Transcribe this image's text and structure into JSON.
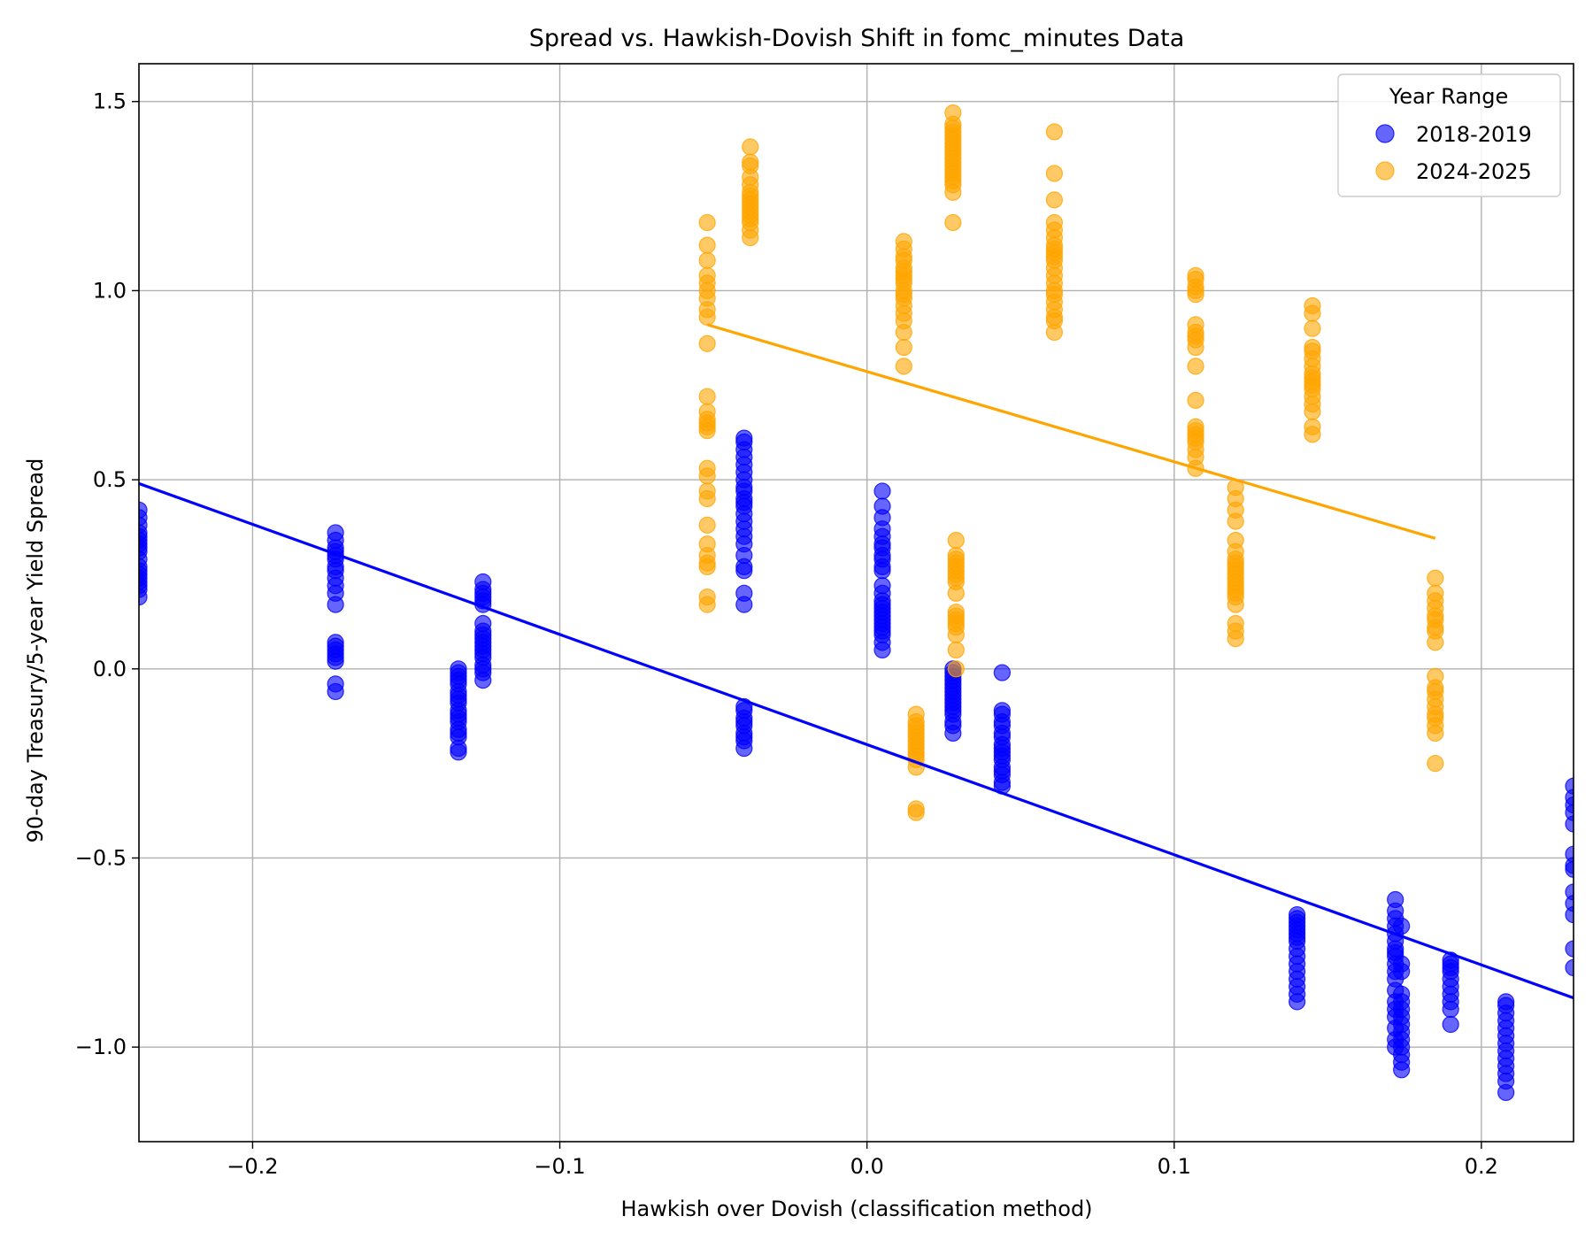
{
  "chart_data": {
    "type": "scatter",
    "title": "Spread vs. Hawkish-Dovish Shift in fomc_minutes Data",
    "xlabel": "Hawkish over Dovish (classification method)",
    "ylabel": "90-day Treasury/5-year Yield Spread",
    "xlim": [
      -0.237,
      0.23
    ],
    "ylim": [
      -1.25,
      1.6
    ],
    "xticks": [
      -0.2,
      -0.1,
      0.0,
      0.1,
      0.2
    ],
    "xtick_labels": [
      "−0.2",
      "−0.1",
      "0.0",
      "0.1",
      "0.2"
    ],
    "yticks": [
      -1.0,
      -0.5,
      0.0,
      0.5,
      1.0,
      1.5
    ],
    "ytick_labels": [
      "−1.0",
      "−0.5",
      "0.0",
      "0.5",
      "1.0",
      "1.5"
    ],
    "grid": true,
    "legend": {
      "title": "Year Range",
      "placement": "top-right"
    },
    "series": [
      {
        "name": "2018-2019",
        "color": "#0000ff",
        "clusters": [
          {
            "x": -0.237,
            "y": [
              0.19,
              0.21,
              0.22,
              0.23,
              0.24,
              0.25,
              0.26,
              0.27,
              0.29,
              0.31,
              0.32,
              0.33,
              0.34,
              0.35,
              0.36,
              0.38,
              0.4,
              0.42
            ]
          },
          {
            "x": -0.173,
            "y": [
              -0.06,
              -0.04,
              0.02,
              0.03,
              0.04,
              0.05,
              0.06,
              0.07,
              0.17,
              0.2,
              0.22,
              0.24,
              0.26,
              0.27,
              0.29,
              0.3,
              0.31,
              0.32,
              0.34,
              0.36
            ]
          },
          {
            "x": -0.133,
            "y": [
              -0.22,
              -0.21,
              -0.18,
              -0.17,
              -0.16,
              -0.14,
              -0.13,
              -0.12,
              -0.11,
              -0.09,
              -0.08,
              -0.07,
              -0.06,
              -0.04,
              -0.03,
              -0.02,
              -0.01,
              0.0
            ]
          },
          {
            "x": -0.125,
            "y": [
              -0.03,
              -0.01,
              0.0,
              0.01,
              0.03,
              0.04,
              0.05,
              0.06,
              0.07,
              0.08,
              0.09,
              0.1,
              0.12,
              0.17,
              0.18,
              0.19,
              0.2,
              0.21,
              0.23
            ]
          },
          {
            "x": -0.04,
            "y": [
              -0.21,
              -0.19,
              -0.18,
              -0.17,
              -0.15,
              -0.14,
              -0.13,
              -0.11,
              -0.1,
              0.17,
              0.2,
              0.26,
              0.27,
              0.3,
              0.33,
              0.35,
              0.37,
              0.39,
              0.41,
              0.43,
              0.44,
              0.45,
              0.47,
              0.48,
              0.5,
              0.52,
              0.54,
              0.56,
              0.58,
              0.6,
              0.61
            ]
          },
          {
            "x": 0.005,
            "y": [
              0.05,
              0.07,
              0.09,
              0.1,
              0.11,
              0.12,
              0.13,
              0.14,
              0.15,
              0.16,
              0.17,
              0.18,
              0.2,
              0.22,
              0.26,
              0.27,
              0.29,
              0.3,
              0.32,
              0.33,
              0.35,
              0.37,
              0.4,
              0.43,
              0.47
            ]
          },
          {
            "x": 0.028,
            "y": [
              -0.17,
              -0.15,
              -0.14,
              -0.12,
              -0.11,
              -0.1,
              -0.09,
              -0.08,
              -0.07,
              -0.06,
              -0.05,
              -0.04,
              -0.03,
              -0.02,
              -0.01,
              0.0
            ]
          },
          {
            "x": 0.044,
            "y": [
              -0.31,
              -0.3,
              -0.28,
              -0.27,
              -0.26,
              -0.24,
              -0.23,
              -0.22,
              -0.21,
              -0.2,
              -0.18,
              -0.17,
              -0.15,
              -0.14,
              -0.12,
              -0.11,
              -0.01
            ]
          },
          {
            "x": 0.14,
            "y": [
              -0.88,
              -0.86,
              -0.84,
              -0.82,
              -0.8,
              -0.78,
              -0.76,
              -0.74,
              -0.72,
              -0.71,
              -0.7,
              -0.69,
              -0.68,
              -0.67,
              -0.66,
              -0.65
            ]
          },
          {
            "x": 0.172,
            "y": [
              -1.0,
              -0.98,
              -0.95,
              -0.92,
              -0.9,
              -0.88,
              -0.85,
              -0.82,
              -0.8,
              -0.78,
              -0.76,
              -0.75,
              -0.74,
              -0.72,
              -0.7,
              -0.68,
              -0.66,
              -0.64,
              -0.61
            ]
          },
          {
            "x": 0.174,
            "y": [
              -1.06,
              -1.04,
              -1.02,
              -1.0,
              -0.98,
              -0.96,
              -0.94,
              -0.92,
              -0.9,
              -0.88,
              -0.86,
              -0.8,
              -0.78,
              -0.68
            ]
          },
          {
            "x": 0.19,
            "y": [
              -0.94,
              -0.9,
              -0.88,
              -0.86,
              -0.84,
              -0.82,
              -0.8,
              -0.79,
              -0.78,
              -0.77
            ]
          },
          {
            "x": 0.208,
            "y": [
              -1.12,
              -1.09,
              -1.07,
              -1.05,
              -1.03,
              -1.01,
              -0.99,
              -0.97,
              -0.95,
              -0.93,
              -0.91,
              -0.89,
              -0.88
            ]
          },
          {
            "x": 0.23,
            "y": [
              -0.79,
              -0.74,
              -0.65,
              -0.62,
              -0.59,
              -0.53,
              -0.52,
              -0.49,
              -0.41,
              -0.38,
              -0.36,
              -0.34,
              -0.31
            ]
          }
        ],
        "fit": {
          "x": [
            -0.237,
            0.23
          ],
          "y": [
            0.49,
            -0.87
          ]
        }
      },
      {
        "name": "2024-2025",
        "color": "#ffa500",
        "clusters": [
          {
            "x": -0.052,
            "y": [
              0.17,
              0.19,
              0.27,
              0.28,
              0.3,
              0.33,
              0.38,
              0.45,
              0.47,
              0.51,
              0.53,
              0.63,
              0.64,
              0.65,
              0.66,
              0.68,
              0.72,
              0.86,
              0.93,
              0.95,
              0.98,
              1.0,
              1.02,
              1.04,
              1.08,
              1.12,
              1.18
            ]
          },
          {
            "x": -0.038,
            "y": [
              1.14,
              1.16,
              1.18,
              1.19,
              1.2,
              1.21,
              1.22,
              1.23,
              1.24,
              1.25,
              1.26,
              1.28,
              1.3,
              1.33,
              1.34,
              1.38
            ]
          },
          {
            "x": 0.012,
            "y": [
              0.8,
              0.85,
              0.89,
              0.92,
              0.94,
              0.96,
              0.98,
              0.99,
              1.0,
              1.02,
              1.03,
              1.04,
              1.05,
              1.06,
              1.08,
              1.09,
              1.11,
              1.13
            ]
          },
          {
            "x": 0.016,
            "y": [
              -0.38,
              -0.37,
              -0.26,
              -0.24,
              -0.23,
              -0.22,
              -0.21,
              -0.2,
              -0.19,
              -0.18,
              -0.17,
              -0.16,
              -0.15,
              -0.14,
              -0.12
            ]
          },
          {
            "x": 0.028,
            "y": [
              1.18,
              1.26,
              1.28,
              1.29,
              1.3,
              1.31,
              1.32,
              1.33,
              1.34,
              1.35,
              1.36,
              1.37,
              1.38,
              1.39,
              1.4,
              1.41,
              1.42,
              1.43,
              1.44,
              1.47
            ]
          },
          {
            "x": 0.029,
            "y": [
              0.0,
              0.05,
              0.09,
              0.11,
              0.12,
              0.13,
              0.14,
              0.15,
              0.2,
              0.23,
              0.24,
              0.25,
              0.26,
              0.27,
              0.28,
              0.29,
              0.3,
              0.34
            ]
          },
          {
            "x": 0.061,
            "y": [
              0.89,
              0.92,
              0.93,
              0.95,
              0.97,
              0.99,
              1.0,
              1.02,
              1.04,
              1.06,
              1.08,
              1.09,
              1.1,
              1.11,
              1.12,
              1.14,
              1.16,
              1.18,
              1.24,
              1.31,
              1.42
            ]
          },
          {
            "x": 0.107,
            "y": [
              0.53,
              0.56,
              0.58,
              0.6,
              0.61,
              0.62,
              0.63,
              0.64,
              0.71,
              0.8,
              0.85,
              0.87,
              0.88,
              0.89,
              0.91,
              0.99,
              1.0,
              1.01,
              1.03,
              1.04
            ]
          },
          {
            "x": 0.12,
            "y": [
              0.08,
              0.1,
              0.12,
              0.17,
              0.19,
              0.2,
              0.21,
              0.22,
              0.23,
              0.24,
              0.25,
              0.26,
              0.27,
              0.28,
              0.29,
              0.31,
              0.34,
              0.39,
              0.42,
              0.45,
              0.48
            ]
          },
          {
            "x": 0.145,
            "y": [
              0.62,
              0.64,
              0.68,
              0.7,
              0.72,
              0.74,
              0.75,
              0.76,
              0.77,
              0.78,
              0.8,
              0.82,
              0.84,
              0.85,
              0.9,
              0.94,
              0.96
            ]
          },
          {
            "x": 0.185,
            "y": [
              -0.25,
              -0.17,
              -0.15,
              -0.13,
              -0.12,
              -0.1,
              -0.08,
              -0.06,
              -0.05,
              -0.02,
              0.07,
              0.1,
              0.11,
              0.13,
              0.14,
              0.16,
              0.18,
              0.2,
              0.24
            ]
          }
        ],
        "fit": {
          "x": [
            -0.052,
            0.185
          ],
          "y": [
            0.91,
            0.345
          ]
        }
      }
    ]
  }
}
